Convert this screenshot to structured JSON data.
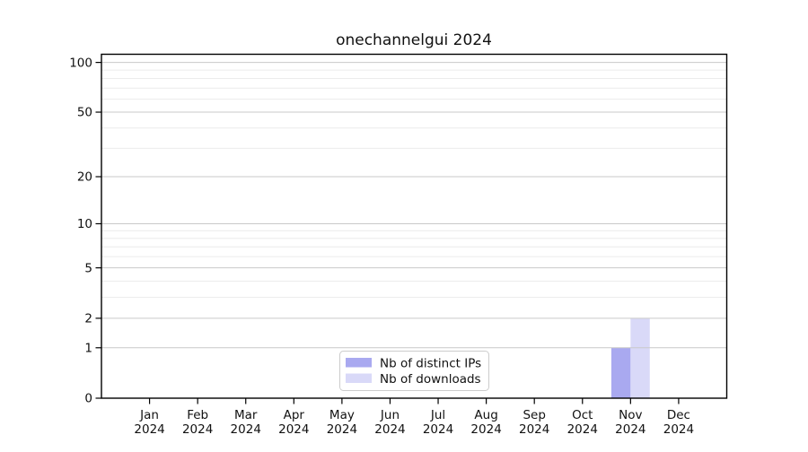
{
  "title": "onechannelgui 2024",
  "legend": {
    "items": [
      {
        "label": "Nb of distinct IPs",
        "color": "#a9a9f0"
      },
      {
        "label": "Nb of downloads",
        "color": "#d9d9f8"
      }
    ]
  },
  "chart_data": {
    "type": "bar",
    "title": "onechannelgui 2024",
    "categories": [
      "Jan",
      "Feb",
      "Mar",
      "Apr",
      "May",
      "Jun",
      "Jul",
      "Aug",
      "Sep",
      "Oct",
      "Nov",
      "Dec"
    ],
    "year_label": "2024",
    "series": [
      {
        "name": "Nb of distinct IPs",
        "color": "#a9a9f0",
        "values": [
          0,
          0,
          0,
          0,
          0,
          0,
          0,
          0,
          0,
          0,
          1,
          0
        ]
      },
      {
        "name": "Nb of downloads",
        "color": "#d9d9f8",
        "values": [
          0,
          0,
          0,
          0,
          0,
          0,
          0,
          0,
          0,
          0,
          2,
          0
        ]
      }
    ],
    "yscale": "log1p",
    "ytick_values": [
      0,
      1,
      2,
      5,
      10,
      20,
      50,
      100
    ],
    "ytick_labels": [
      "0",
      "1",
      "2",
      "5",
      "10",
      "20",
      "50",
      "100"
    ],
    "yminor_values": [
      3,
      4,
      6,
      7,
      8,
      9,
      30,
      40,
      60,
      70,
      80,
      90
    ],
    "ylim": [
      0,
      112
    ],
    "xlabel": "",
    "ylabel": "",
    "grid": true,
    "grid_over_bars": true,
    "legend_position": "inside-bottom-center",
    "colors": {
      "major_grid": "#c9c9c9",
      "minor_grid": "#ececec",
      "spine": "#000000",
      "text": "#111111",
      "legend_border": "#cccccc",
      "background": "#ffffff"
    }
  }
}
